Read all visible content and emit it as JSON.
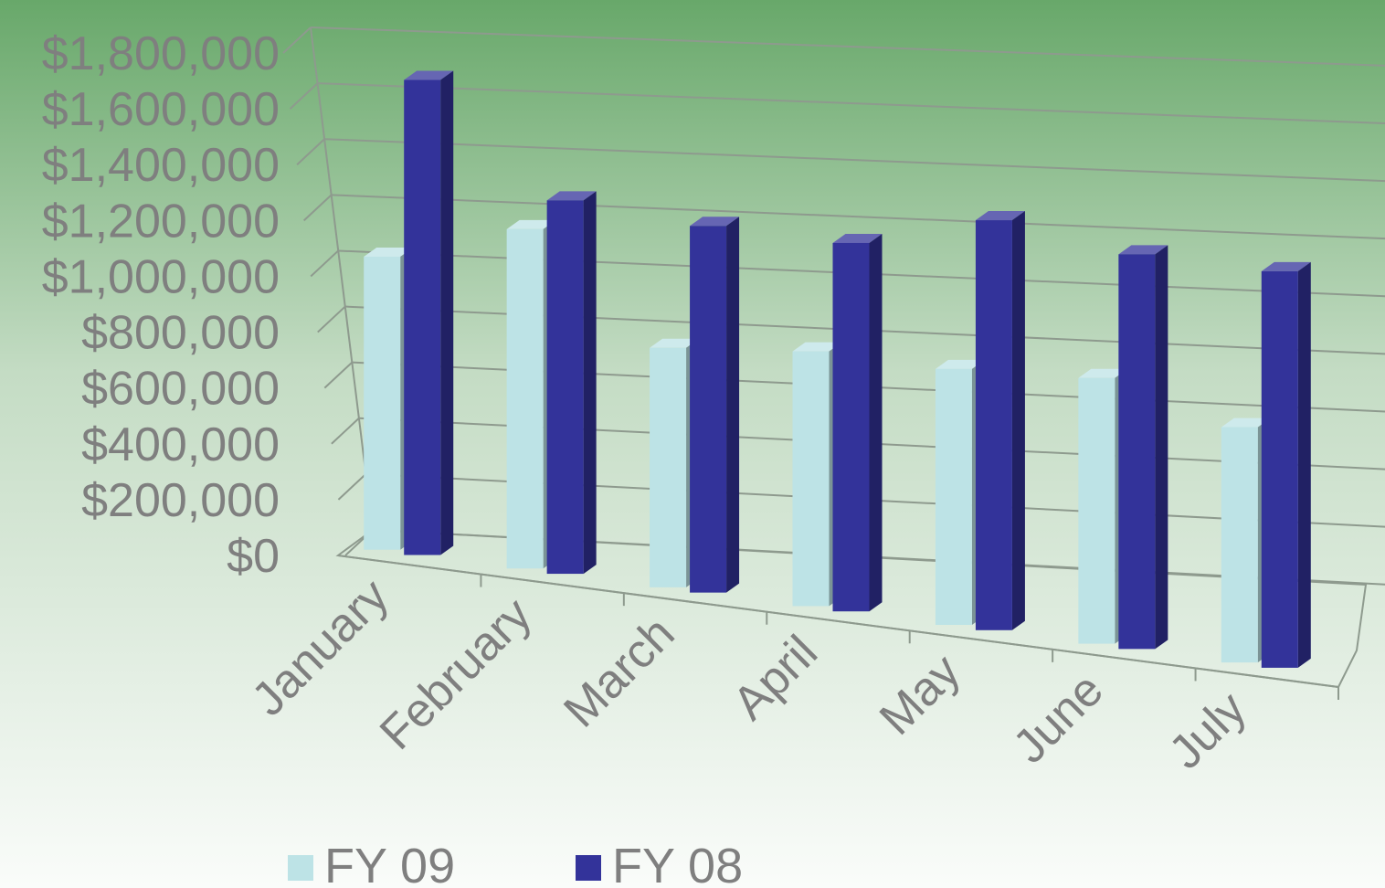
{
  "chart_data": {
    "type": "bar",
    "style": "3d-clustered-column",
    "categories": [
      "January",
      "February",
      "March",
      "April",
      "May",
      "June",
      "July"
    ],
    "series": [
      {
        "name": "FY 09",
        "color": "#bde3e6",
        "values": [
          1050000,
          1210000,
          850000,
          900000,
          900000,
          930000,
          820000
        ]
      },
      {
        "name": "FY 08",
        "color": "#33339a",
        "values": [
          1700000,
          1330000,
          1300000,
          1300000,
          1440000,
          1380000,
          1380000
        ]
      }
    ],
    "yticks": [
      "$0",
      "$200,000",
      "$400,000",
      "$600,000",
      "$800,000",
      "$1,000,000",
      "$1,200,000",
      "$1,400,000",
      "$1,600,000",
      "$1,800,000"
    ],
    "ylim": [
      0,
      1800000
    ],
    "grid": true,
    "legend_position": "bottom",
    "background": {
      "top": "#68a86a",
      "bottom": "#fafcfa"
    }
  }
}
